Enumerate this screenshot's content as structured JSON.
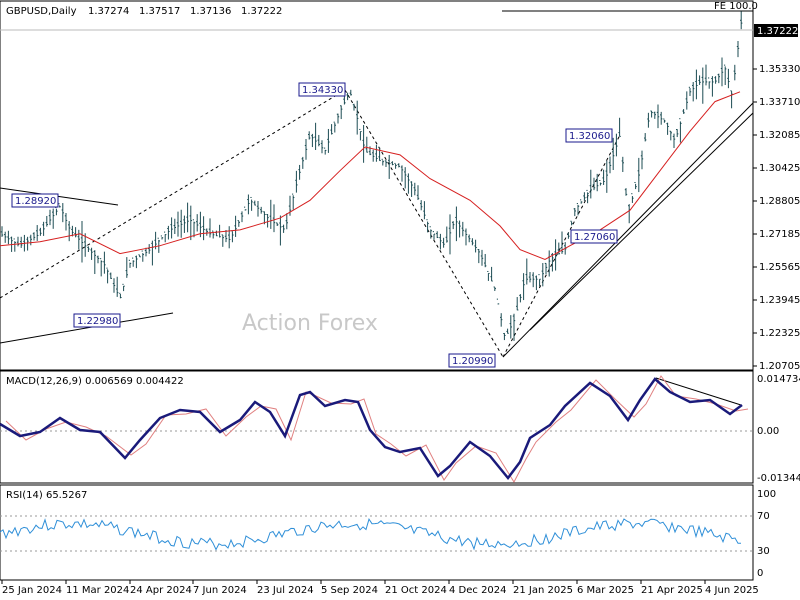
{
  "chart_data": [
    {
      "type": "line",
      "title": "GBPUSD,Daily",
      "ohlc": {
        "open": "1.37274",
        "high": "1.37517",
        "low": "1.37136",
        "close": "1.37222"
      },
      "watermark": "Action Forex",
      "current_price": "1.37222",
      "fe_label": "FE 100.0",
      "x_tick_labels": [
        "25 Jan 2024",
        "11 Mar 2024",
        "24 Apr 2024",
        "7 Jun 2024",
        "23 Jul 2024",
        "5 Sep 2024",
        "21 Oct 2024",
        "4 Dec 2024",
        "21 Jan 2025",
        "6 Mar 2025",
        "21 Apr 2025",
        "4 Jun 2025"
      ],
      "y_tick_labels": [
        "1.35330",
        "1.33710",
        "1.32085",
        "1.30425",
        "1.28805",
        "1.27185",
        "1.25565",
        "1.23945",
        "1.22325",
        "1.20705"
      ],
      "ylim": [
        1.2,
        1.385
      ],
      "price_path": [
        [
          0,
          1.268
        ],
        [
          20,
          1.262
        ],
        [
          40,
          1.268
        ],
        [
          60,
          1.282
        ],
        [
          70,
          1.27
        ],
        [
          85,
          1.262
        ],
        [
          105,
          1.252
        ],
        [
          120,
          1.235
        ],
        [
          130,
          1.253
        ],
        [
          150,
          1.26
        ],
        [
          170,
          1.27
        ],
        [
          190,
          1.275
        ],
        [
          210,
          1.268
        ],
        [
          230,
          1.265
        ],
        [
          250,
          1.285
        ],
        [
          270,
          1.275
        ],
        [
          285,
          1.27
        ],
        [
          300,
          1.3
        ],
        [
          310,
          1.318
        ],
        [
          325,
          1.31
        ],
        [
          340,
          1.33
        ],
        [
          350,
          1.34
        ],
        [
          358,
          1.325
        ],
        [
          365,
          1.31
        ],
        [
          380,
          1.305
        ],
        [
          400,
          1.302
        ],
        [
          415,
          1.29
        ],
        [
          430,
          1.27
        ],
        [
          445,
          1.262
        ],
        [
          455,
          1.275
        ],
        [
          470,
          1.265
        ],
        [
          480,
          1.258
        ],
        [
          495,
          1.24
        ],
        [
          505,
          1.215
        ],
        [
          515,
          1.225
        ],
        [
          525,
          1.245
        ],
        [
          540,
          1.245
        ],
        [
          550,
          1.255
        ],
        [
          565,
          1.26
        ],
        [
          575,
          1.28
        ],
        [
          590,
          1.29
        ],
        [
          605,
          1.295
        ],
        [
          620,
          1.318
        ],
        [
          628,
          1.278
        ],
        [
          640,
          1.3
        ],
        [
          650,
          1.33
        ],
        [
          665,
          1.325
        ],
        [
          675,
          1.315
        ],
        [
          690,
          1.34
        ],
        [
          700,
          1.345
        ],
        [
          715,
          1.345
        ],
        [
          725,
          1.352
        ],
        [
          732,
          1.338
        ],
        [
          742,
          1.378
        ]
      ],
      "ma_path": [
        [
          0,
          1.262
        ],
        [
          40,
          1.264
        ],
        [
          80,
          1.268
        ],
        [
          120,
          1.258
        ],
        [
          160,
          1.262
        ],
        [
          200,
          1.268
        ],
        [
          240,
          1.27
        ],
        [
          280,
          1.276
        ],
        [
          310,
          1.285
        ],
        [
          340,
          1.3
        ],
        [
          365,
          1.312
        ],
        [
          400,
          1.308
        ],
        [
          430,
          1.296
        ],
        [
          470,
          1.285
        ],
        [
          500,
          1.272
        ],
        [
          520,
          1.26
        ],
        [
          545,
          1.255
        ],
        [
          570,
          1.262
        ],
        [
          600,
          1.27
        ],
        [
          630,
          1.28
        ],
        [
          660,
          1.3
        ],
        [
          690,
          1.32
        ],
        [
          715,
          1.335
        ],
        [
          740,
          1.34
        ]
      ],
      "annotations": [
        {
          "text": "1.28920",
          "x_index": 60,
          "value": 1.2892
        },
        {
          "text": "1.22980",
          "x_index": 122,
          "value": 1.2298
        },
        {
          "text": "1.34330",
          "x_index": 345,
          "value": 1.3433
        },
        {
          "text": "1.20990",
          "x_index": 503,
          "value": 1.2099
        },
        {
          "text": "1.32060",
          "x_index": 618,
          "value": 1.3206
        },
        {
          "text": "1.27060",
          "x_index": 625,
          "value": 1.2706
        }
      ]
    },
    {
      "type": "line",
      "title": "MACD(12,26,9) 0.006569 0.004422",
      "y_tick_labels": [
        "0.014734",
        "0.00",
        "-0.013442"
      ],
      "ylim": [
        -0.0165,
        0.0165
      ]
    },
    {
      "type": "line",
      "title": "RSI(14) 65.5267",
      "y_tick_labels": [
        "100",
        "70",
        "30",
        "0"
      ],
      "ylim": [
        0,
        100
      ],
      "levels": [
        70,
        30
      ]
    }
  ]
}
